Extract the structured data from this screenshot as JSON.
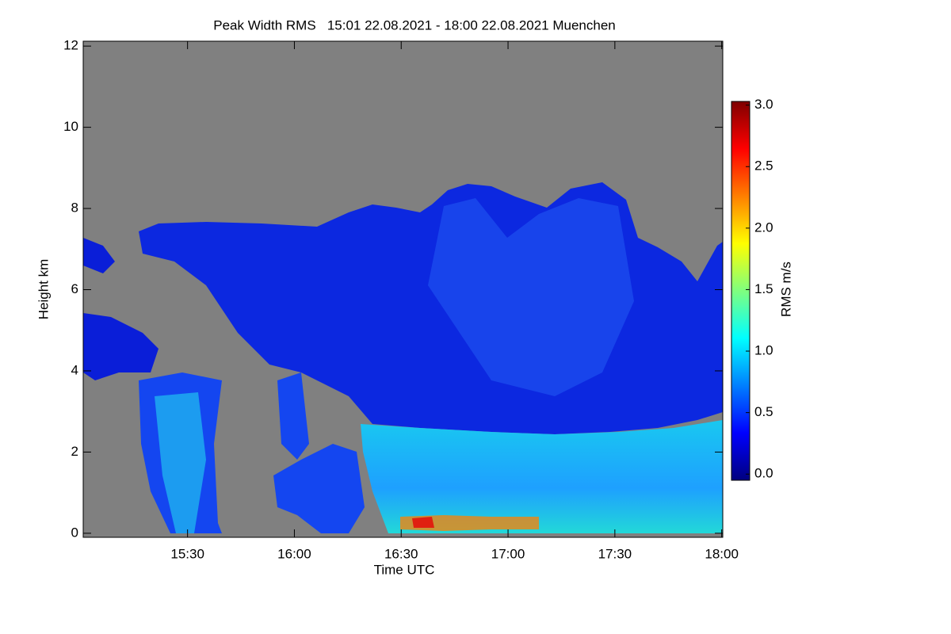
{
  "chart_data": {
    "type": "heatmap",
    "title": "Peak Width RMS   15:01 22.08.2021 - 18:00 22.08.2021 Muenchen",
    "x_label": "Time UTC",
    "y_label": "Height km",
    "xlim": [
      900.7,
      1080.3
    ],
    "xticks": [
      {
        "value": 930,
        "label": "15:30"
      },
      {
        "value": 960,
        "label": "16:00"
      },
      {
        "value": 990,
        "label": "16:30"
      },
      {
        "value": 1020,
        "label": "17:00"
      },
      {
        "value": 1050,
        "label": "17:30"
      },
      {
        "value": 1080,
        "label": "18:00"
      }
    ],
    "ylim": [
      -0.1,
      12.12
    ],
    "yticks": [
      0,
      2,
      4,
      6,
      8,
      10,
      12
    ],
    "colorbar": {
      "label": "RMS m/s",
      "colormap": "jet",
      "lim": [
        -0.05,
        3.03
      ],
      "ticks": [
        {
          "value": 0,
          "label": "0.0"
        },
        {
          "value": 0.5,
          "label": "0.5"
        },
        {
          "value": 1,
          "label": "1.0"
        },
        {
          "value": 1.5,
          "label": "1.5"
        },
        {
          "value": 2,
          "label": "2.0"
        },
        {
          "value": 2.5,
          "label": "2.5"
        },
        {
          "value": 3,
          "label": "3.0"
        }
      ]
    }
  }
}
